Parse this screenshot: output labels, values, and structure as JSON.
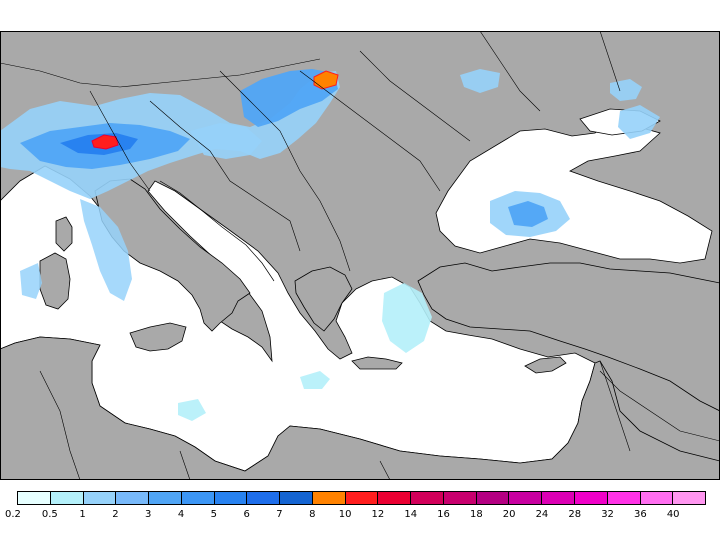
{
  "map": {
    "colors": {
      "land": "#a9a9a9",
      "sea_background": "#ffffff",
      "border": "#000000"
    }
  },
  "legend": {
    "labels": [
      "0.2",
      "0.5",
      "1",
      "2",
      "3",
      "4",
      "5",
      "6",
      "7",
      "8",
      "10",
      "12",
      "14",
      "16",
      "18",
      "20",
      "24",
      "28",
      "32",
      "36",
      "40"
    ],
    "colors": [
      "#e6ffff",
      "#b4f0fa",
      "#96d2fa",
      "#78b9fa",
      "#50a5f5",
      "#3c96f5",
      "#2882f0",
      "#1e6eeb",
      "#1464d2",
      "#ff8200",
      "#ff1e1e",
      "#eb0032",
      "#d2005a",
      "#c8006e",
      "#b40082",
      "#c800a0",
      "#dc00b4",
      "#f000c8",
      "#ff32e6",
      "#ff6ef0",
      "#ff96f0"
    ]
  }
}
